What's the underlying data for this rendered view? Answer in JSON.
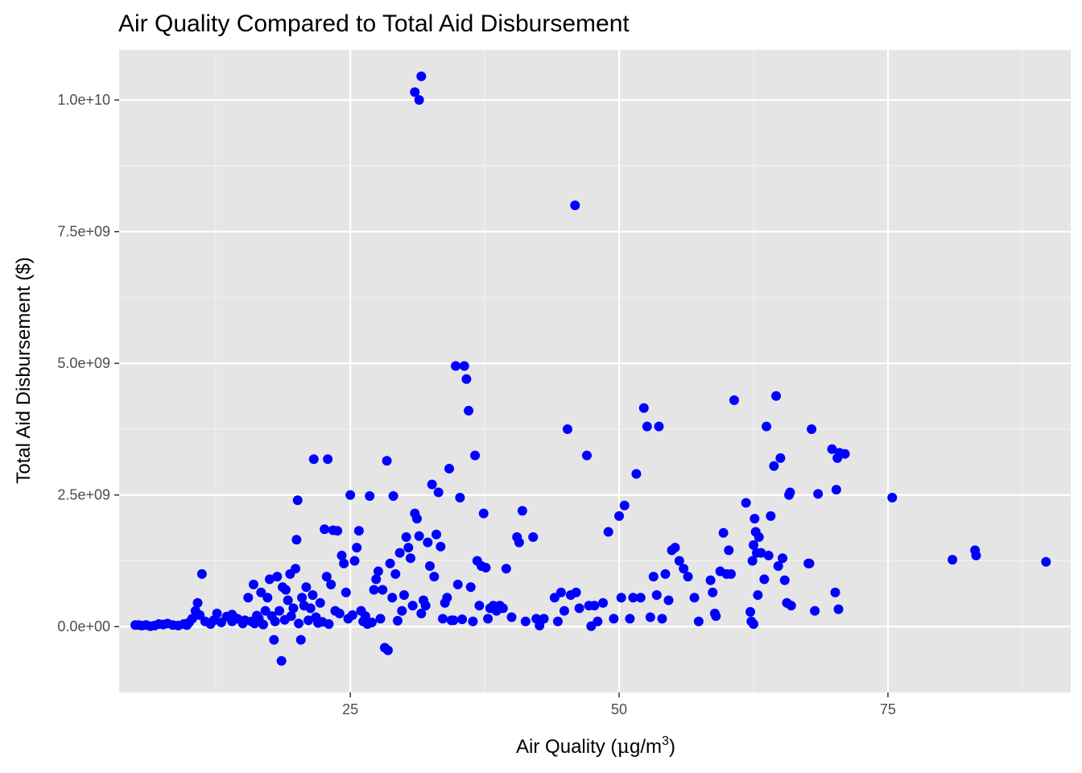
{
  "chart_data": {
    "type": "scatter",
    "title": "Air Quality Compared to Total Aid Disbursement",
    "xlabel": "Air Quality (µg/m³)",
    "xlabel_parts": {
      "main": "Air Quality (",
      "mu": "μ",
      "unit": "g/m",
      "sup": "3",
      "close": ")"
    },
    "ylabel": "Total Aid Disbursement ($)",
    "xlim": [
      3.5,
      92
    ],
    "ylim": [
      -1250000000,
      10950000000
    ],
    "x_ticks": [
      25,
      50,
      75
    ],
    "x_tick_labels": [
      "25",
      "50",
      "75"
    ],
    "y_ticks": [
      0,
      2500000000,
      5000000000,
      7500000000,
      10000000000
    ],
    "y_tick_labels": [
      "0.0e+00",
      "2.5e+09",
      "5.0e+09",
      "7.5e+09",
      "1.0e+10"
    ],
    "grid": true,
    "point_color": "#0000ff",
    "panel_color": "#e5e5e5",
    "points": [
      [
        5,
        30000000.0
      ],
      [
        5.3,
        30000000.0
      ],
      [
        5.6,
        20000000.0
      ],
      [
        6,
        30000000.0
      ],
      [
        6.4,
        10000000.0
      ],
      [
        6.8,
        20000000.0
      ],
      [
        7.2,
        50000000.0
      ],
      [
        7.6,
        40000000.0
      ],
      [
        8,
        60000000.0
      ],
      [
        8.5,
        30000000.0
      ],
      [
        9,
        20000000.0
      ],
      [
        9.5,
        50000000.0
      ],
      [
        10,
        80000000.0
      ],
      [
        10.3,
        150000000.0
      ],
      [
        10.6,
        300000000.0
      ],
      [
        10.8,
        450000000.0
      ],
      [
        11,
        220000000.0
      ],
      [
        11.2,
        1000000000.0
      ],
      [
        11.5,
        100000000.0
      ],
      [
        12,
        50000000.0
      ],
      [
        12.3,
        120000000.0
      ],
      [
        12.6,
        250000000.0
      ],
      [
        13,
        80000000.0
      ],
      [
        13.5,
        190000000.0
      ],
      [
        14,
        230000000.0
      ],
      [
        14.5,
        150000000.0
      ],
      [
        15,
        60000000.0
      ],
      [
        15.2,
        120000000.0
      ],
      [
        15.5,
        550000000.0
      ],
      [
        15.8,
        100000000.0
      ],
      [
        16,
        800000000.0
      ],
      [
        16.1,
        60000000.0
      ],
      [
        16.3,
        210000000.0
      ],
      [
        16.5,
        150000000.0
      ],
      [
        16.7,
        650000000.0
      ],
      [
        16.9,
        40000000.0
      ],
      [
        17.1,
        300000000.0
      ],
      [
        17.3,
        550000000.0
      ],
      [
        17.5,
        900000000.0
      ],
      [
        17.7,
        200000000.0
      ],
      [
        17.9,
        -250000000.0
      ],
      [
        18,
        100000000.0
      ],
      [
        18.2,
        950000000.0
      ],
      [
        18.4,
        300000000.0
      ],
      [
        18.6,
        -650000000.0
      ],
      [
        18.7,
        750000000.0
      ],
      [
        18.9,
        130000000.0
      ],
      [
        19,
        700000000.0
      ],
      [
        19.2,
        500000000.0
      ],
      [
        19.4,
        1000000000.0
      ],
      [
        19.5,
        200000000.0
      ],
      [
        19.7,
        350000000.0
      ],
      [
        19.9,
        1100000000.0
      ],
      [
        20,
        1650000000.0
      ],
      [
        20.1,
        2400000000.0
      ],
      [
        20.2,
        60000000.0
      ],
      [
        20.4,
        -250000000.0
      ],
      [
        20.5,
        550000000.0
      ],
      [
        20.7,
        400000000.0
      ],
      [
        20.9,
        750000000.0
      ],
      [
        21.1,
        120000000.0
      ],
      [
        21.3,
        350000000.0
      ],
      [
        21.5,
        600000000.0
      ],
      [
        21.6,
        3180000000.0
      ],
      [
        21.8,
        180000000.0
      ],
      [
        22,
        70000000.0
      ],
      [
        22.2,
        450000000.0
      ],
      [
        22.4,
        90000000.0
      ],
      [
        22.6,
        1850000000.0
      ],
      [
        22.8,
        950000000.0
      ],
      [
        22.9,
        3180000000.0
      ],
      [
        23,
        50000000.0
      ],
      [
        23.2,
        800000000.0
      ],
      [
        23.4,
        1830000000.0
      ],
      [
        23.6,
        300000000.0
      ],
      [
        23.8,
        1820000000.0
      ],
      [
        24,
        250000000.0
      ],
      [
        24.2,
        1350000000.0
      ],
      [
        24.4,
        1200000000.0
      ],
      [
        24.6,
        650000000.0
      ],
      [
        24.8,
        150000000.0
      ],
      [
        25,
        2500000000.0
      ],
      [
        25.2,
        220000000.0
      ],
      [
        25.4,
        1250000000.0
      ],
      [
        25.6,
        1500000000.0
      ],
      [
        25.8,
        1820000000.0
      ],
      [
        26,
        300000000.0
      ],
      [
        26.2,
        100000000.0
      ],
      [
        26.4,
        200000000.0
      ],
      [
        26.6,
        50000000.0
      ],
      [
        26.8,
        2480000000.0
      ],
      [
        27,
        80000000.0
      ],
      [
        27.2,
        700000000.0
      ],
      [
        27.4,
        900000000.0
      ],
      [
        27.6,
        1050000000.0
      ],
      [
        27.8,
        150000000.0
      ],
      [
        28,
        700000000.0
      ],
      [
        28.2,
        -400000000.0
      ],
      [
        28.4,
        3150000000.0
      ],
      [
        28.5,
        -450000000.0
      ],
      [
        28.7,
        1200000000.0
      ],
      [
        28.9,
        550000000.0
      ],
      [
        29,
        2480000000.0
      ],
      [
        29.2,
        1000000000.0
      ],
      [
        29.4,
        112000000.0
      ],
      [
        29.6,
        1400000000.0
      ],
      [
        29.8,
        300000000.0
      ],
      [
        30,
        600000000.0
      ],
      [
        30.2,
        1700000000.0
      ],
      [
        30.4,
        1500000000.0
      ],
      [
        30.6,
        1300000000.0
      ],
      [
        30.8,
        400000000.0
      ],
      [
        31,
        2150000000.0
      ],
      [
        31.2,
        2050000000.0
      ],
      [
        31.4,
        1720000000.0
      ],
      [
        31.6,
        250000000.0
      ],
      [
        31.8,
        500000000.0
      ],
      [
        32,
        400000000.0
      ],
      [
        32.2,
        1600000000.0
      ],
      [
        32.4,
        1150000000.0
      ],
      [
        31,
        10150000000.0
      ],
      [
        31.6,
        10450000000.0
      ],
      [
        31.4,
        10000000000.0
      ],
      [
        32.6,
        2700000000.0
      ],
      [
        32.8,
        950000000.0
      ],
      [
        33,
        1750000000.0
      ],
      [
        33.2,
        2550000000.0
      ],
      [
        33.4,
        1520000000.0
      ],
      [
        33.6,
        150000000.0
      ],
      [
        33.8,
        450000000.0
      ],
      [
        34,
        550000000.0
      ],
      [
        34.2,
        3000000000.0
      ],
      [
        34.4,
        120000000.0
      ],
      [
        34.6,
        120000000.0
      ],
      [
        34.8,
        4950000000.0
      ],
      [
        35,
        800000000.0
      ],
      [
        35.2,
        2450000000.0
      ],
      [
        35.4,
        140000000.0
      ],
      [
        35.6,
        4950000000.0
      ],
      [
        35.8,
        4700000000.0
      ],
      [
        36,
        4100000000.0
      ],
      [
        36.2,
        750000000.0
      ],
      [
        36.4,
        100000000.0
      ],
      [
        36.6,
        3250000000.0
      ],
      [
        36.8,
        1250000000.0
      ],
      [
        37,
        400000000.0
      ],
      [
        37.2,
        1150000000.0
      ],
      [
        37.4,
        2150000000.0
      ],
      [
        37.6,
        1120000000.0
      ],
      [
        37.8,
        150000000.0
      ],
      [
        38,
        350000000.0
      ],
      [
        38.3,
        400000000.0
      ],
      [
        38.6,
        300000000.0
      ],
      [
        38.9,
        400000000.0
      ],
      [
        39.2,
        350000000.0
      ],
      [
        39.5,
        1100000000.0
      ],
      [
        40,
        180000000.0
      ],
      [
        40.5,
        1700000000.0
      ],
      [
        40.7,
        1600000000.0
      ],
      [
        41,
        2200000000.0
      ],
      [
        41.3,
        100000000.0
      ],
      [
        42,
        1700000000.0
      ],
      [
        42.3,
        150000000.0
      ],
      [
        42.6,
        20000000.0
      ],
      [
        43,
        150000000.0
      ],
      [
        44,
        550000000.0
      ],
      [
        44.3,
        100000000.0
      ],
      [
        44.6,
        650000000.0
      ],
      [
        44.9,
        300000000.0
      ],
      [
        45.2,
        3750000000.0
      ],
      [
        45.5,
        600000000.0
      ],
      [
        45.9,
        8000000000.0
      ],
      [
        46,
        650000000.0
      ],
      [
        46.3,
        350000000.0
      ],
      [
        47,
        3250000000.0
      ],
      [
        47.2,
        400000000.0
      ],
      [
        47.4,
        10000000.0
      ],
      [
        47.7,
        400000000.0
      ],
      [
        48,
        100000000.0
      ],
      [
        48.5,
        450000000.0
      ],
      [
        49,
        1800000000.0
      ],
      [
        49.5,
        150000000.0
      ],
      [
        50,
        2100000000.0
      ],
      [
        50.2,
        550000000.0
      ],
      [
        50.5,
        2300000000.0
      ],
      [
        51,
        150000000.0
      ],
      [
        51.3,
        550000000.0
      ],
      [
        51.6,
        2900000000.0
      ],
      [
        52,
        550000000.0
      ],
      [
        52.3,
        4150000000.0
      ],
      [
        52.6,
        3800000000.0
      ],
      [
        52.9,
        180000000.0
      ],
      [
        53.2,
        950000000.0
      ],
      [
        53.5,
        600000000.0
      ],
      [
        53.7,
        3800000000.0
      ],
      [
        54,
        150000000.0
      ],
      [
        54.3,
        1000000000.0
      ],
      [
        54.6,
        500000000.0
      ],
      [
        54.9,
        1450000000.0
      ],
      [
        55.2,
        1500000000.0
      ],
      [
        55.6,
        1250000000.0
      ],
      [
        56,
        1100000000.0
      ],
      [
        56.4,
        950000000.0
      ],
      [
        57,
        550000000.0
      ],
      [
        57.4,
        100000000.0
      ],
      [
        58.5,
        880000000.0
      ],
      [
        58.7,
        650000000.0
      ],
      [
        58.9,
        250000000.0
      ],
      [
        59,
        200000000.0
      ],
      [
        59.4,
        1050000000.0
      ],
      [
        59.7,
        1780000000.0
      ],
      [
        60,
        1000000000.0
      ],
      [
        60.2,
        1450000000.0
      ],
      [
        60.4,
        1000000000.0
      ],
      [
        60.7,
        4300000000.0
      ],
      [
        61.8,
        2350000000.0
      ],
      [
        62.2,
        280000000.0
      ],
      [
        62.4,
        1250000000.0
      ],
      [
        62.5,
        1550000000.0
      ],
      [
        62.6,
        2050000000.0
      ],
      [
        62.7,
        1800000000.0
      ],
      [
        62.8,
        1400000000.0
      ],
      [
        62.9,
        600000000.0
      ],
      [
        63,
        1700000000.0
      ],
      [
        63.2,
        1400000000.0
      ],
      [
        63.5,
        900000000.0
      ],
      [
        63.7,
        3800000000.0
      ],
      [
        63.9,
        1350000000.0
      ],
      [
        64.1,
        2100000000.0
      ],
      [
        64.4,
        3050000000.0
      ],
      [
        64.6,
        4380000000.0
      ],
      [
        64.8,
        1150000000.0
      ],
      [
        65,
        3200000000.0
      ],
      [
        65.2,
        1300000000.0
      ],
      [
        65.4,
        880000000.0
      ],
      [
        65.6,
        450000000.0
      ],
      [
        65.8,
        2500000000.0
      ],
      [
        66,
        400000000.0
      ],
      [
        65.9,
        2550000000.0
      ],
      [
        67.7,
        1200000000.0
      ],
      [
        67.9,
        3750000000.0
      ],
      [
        68.5,
        2520000000.0
      ],
      [
        69.8,
        3370000000.0
      ],
      [
        70.2,
        2600000000.0
      ],
      [
        70.5,
        3300000000.0
      ],
      [
        70.3,
        3200000000.0
      ],
      [
        70.1,
        650000000.0
      ],
      [
        70.4,
        330000000.0
      ],
      [
        71,
        3280000000.0
      ],
      [
        68.2,
        300000000.0
      ],
      [
        62.5,
        50000000.0
      ],
      [
        62.3,
        100000000.0
      ],
      [
        67.6,
        1200000000.0
      ],
      [
        75.4,
        2450000000.0
      ],
      [
        81,
        1270000000.0
      ],
      [
        83.1,
        1450000000.0
      ],
      [
        83.2,
        1350000000.0
      ],
      [
        89.7,
        1230000000.0
      ],
      [
        9.8,
        30000000.0
      ],
      [
        14,
        100000000.0
      ]
    ]
  }
}
